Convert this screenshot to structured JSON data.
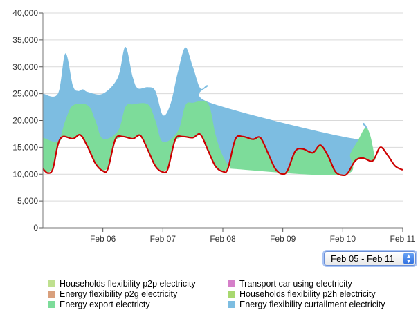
{
  "chart_data": {
    "type": "area",
    "xlabel": "",
    "ylabel": "",
    "ylim": [
      0,
      40000
    ],
    "xlim": [
      "2013-02-05 00:00",
      "2013-02-11 00:00"
    ],
    "grid": true,
    "y_ticks": [
      "0",
      "5,000",
      "10,000",
      "15,000",
      "20,000",
      "25,000",
      "30,000",
      "35,000",
      "40,000"
    ],
    "x_ticks": [
      "Feb 06",
      "Feb 07",
      "Feb 08",
      "Feb 09",
      "Feb 10",
      "Feb 11"
    ],
    "stacked_series": [
      {
        "name": "Energy export electricty",
        "color": "#7ddc9a",
        "points": [
          [
            "02-05 00:00",
            16800
          ],
          [
            "02-05 06:00",
            16200
          ],
          [
            "02-05 09:00",
            20000
          ],
          [
            "02-05 12:00",
            22800
          ],
          [
            "02-05 18:00",
            22800
          ],
          [
            "02-05 21:00",
            20000
          ],
          [
            "02-06 00:00",
            16600
          ],
          [
            "02-06 06:00",
            18000
          ],
          [
            "02-06 09:00",
            22500
          ],
          [
            "02-06 12:00",
            23000
          ],
          [
            "02-06 18:00",
            23000
          ],
          [
            "02-06 21:00",
            20000
          ],
          [
            "02-07 00:00",
            16000
          ],
          [
            "02-07 06:00",
            18000
          ],
          [
            "02-07 09:00",
            22800
          ],
          [
            "02-07 12:00",
            23300
          ],
          [
            "02-07 18:00",
            23200
          ],
          [
            "02-07 21:00",
            17500
          ],
          [
            "02-07 23:00",
            14500
          ],
          [
            "02-08 01:00",
            12500
          ],
          [
            "02-08 03:00",
            11300
          ],
          [
            "02-08 04:00",
            11000
          ],
          [
            "02-10 00:00",
            9900
          ],
          [
            "02-10 03:00",
            13800
          ],
          [
            "02-10 06:00",
            16200
          ],
          [
            "02-10 09:00",
            18600
          ],
          [
            "02-10 11:00",
            17200
          ],
          [
            "02-10 13:00",
            12600
          ]
        ]
      },
      {
        "name": "Energy flexibility curtailment electricity",
        "color": "#7dbde1",
        "points": [
          [
            "02-05 00:00",
            25000
          ],
          [
            "02-05 06:00",
            25000
          ],
          [
            "02-05 09:00",
            32500
          ],
          [
            "02-05 12:00",
            26500
          ],
          [
            "02-05 14:00",
            25500
          ],
          [
            "02-05 16:00",
            25800
          ],
          [
            "02-05 18:00",
            25300
          ],
          [
            "02-05 24:00",
            25000
          ],
          [
            "02-06 06:00",
            28000
          ],
          [
            "02-06 09:00",
            33700
          ],
          [
            "02-06 12:00",
            28000
          ],
          [
            "02-06 14:00",
            26000
          ],
          [
            "02-06 18:00",
            26200
          ],
          [
            "02-06 21:00",
            25500
          ],
          [
            "02-07 00:00",
            21000
          ],
          [
            "02-07 03:00",
            23000
          ],
          [
            "02-07 06:00",
            29000
          ],
          [
            "02-07 09:00",
            33600
          ],
          [
            "02-07 12:00",
            30000
          ],
          [
            "02-07 15:00",
            26000
          ],
          [
            "02-07 18:00",
            26500
          ],
          [
            "02-07 19:00",
            23300
          ],
          [
            "02-10 06:00",
            16500
          ],
          [
            "02-10 08:00",
            19500
          ],
          [
            "02-10 10:00",
            18500
          ]
        ]
      }
    ],
    "line_series": {
      "name": "Transport car using electricity",
      "color": "#cc0000",
      "points": [
        [
          "02-05 00:00",
          11000
        ],
        [
          "02-05 02:00",
          10200
        ],
        [
          "02-05 04:00",
          11000
        ],
        [
          "02-05 06:00",
          15500
        ],
        [
          "02-05 08:00",
          17000
        ],
        [
          "02-05 12:00",
          16600
        ],
        [
          "02-05 15:00",
          17300
        ],
        [
          "02-05 18:00",
          15000
        ],
        [
          "02-05 21:00",
          12000
        ],
        [
          "02-06 00:00",
          10600
        ],
        [
          "02-06 02:00",
          11000
        ],
        [
          "02-06 05:00",
          16500
        ],
        [
          "02-06 08:00",
          17000
        ],
        [
          "02-06 12:00",
          16600
        ],
        [
          "02-06 15:00",
          17200
        ],
        [
          "02-06 18:00",
          14500
        ],
        [
          "02-06 21:00",
          11500
        ],
        [
          "02-07 00:00",
          10400
        ],
        [
          "02-07 02:00",
          11000
        ],
        [
          "02-07 05:00",
          16500
        ],
        [
          "02-07 08:00",
          17000
        ],
        [
          "02-07 12:00",
          16800
        ],
        [
          "02-07 15:00",
          17400
        ],
        [
          "02-07 18:00",
          14500
        ],
        [
          "02-07 21:00",
          11500
        ],
        [
          "02-08 00:00",
          10500
        ],
        [
          "02-08 02:00",
          11000
        ],
        [
          "02-08 05:00",
          16500
        ],
        [
          "02-08 08:00",
          17000
        ],
        [
          "02-08 12:00",
          16500
        ],
        [
          "02-08 15:00",
          16800
        ],
        [
          "02-08 18:00",
          14000
        ],
        [
          "02-08 21:00",
          11000
        ],
        [
          "02-09 00:00",
          10000
        ],
        [
          "02-09 02:00",
          10800
        ],
        [
          "02-09 05:00",
          14300
        ],
        [
          "02-09 08:00",
          14700
        ],
        [
          "02-09 12:00",
          14000
        ],
        [
          "02-09 15:00",
          15400
        ],
        [
          "02-09 18:00",
          13500
        ],
        [
          "02-09 21:00",
          10500
        ],
        [
          "02-10 00:00",
          9800
        ],
        [
          "02-10 02:00",
          10200
        ],
        [
          "02-10 05:00",
          12500
        ],
        [
          "02-10 08:00",
          13000
        ],
        [
          "02-10 12:00",
          12500
        ],
        [
          "02-10 15:00",
          15000
        ],
        [
          "02-10 18:00",
          13500
        ],
        [
          "02-10 21:00",
          11500
        ],
        [
          "02-11 00:00",
          10800
        ]
      ]
    }
  },
  "range_selector": {
    "value": "Feb 05 - Feb 11"
  },
  "legend": [
    {
      "label": "Households flexibility p2p electricity",
      "color": "#bfe08f"
    },
    {
      "label": "Transport car using electricity",
      "color": "#d57fc9"
    },
    {
      "label": "Energy flexibility p2g electricity",
      "color": "#d9a07d"
    },
    {
      "label": "Households flexibility p2h electricity",
      "color": "#a8d86f"
    },
    {
      "label": "Energy export electricty",
      "color": "#7ddc9a"
    },
    {
      "label": "Energy flexibility curtailment electricity",
      "color": "#7dbde1"
    }
  ]
}
